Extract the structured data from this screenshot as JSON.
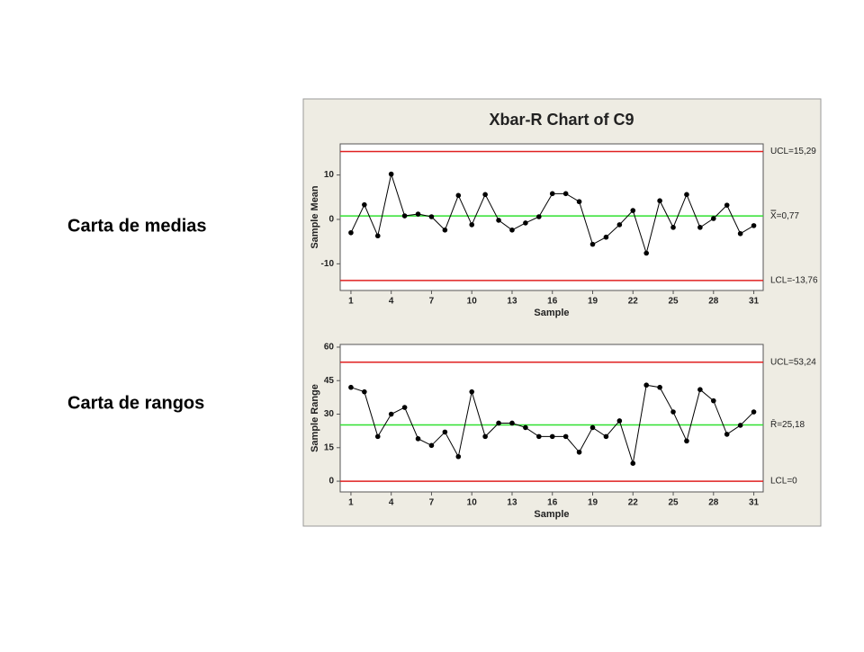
{
  "slide_labels": [
    "Carta de medias",
    "Carta de rangos"
  ],
  "chart_data": [
    {
      "type": "line",
      "title": "Xbar-R Chart of C9",
      "x_label": "Sample",
      "y_label": "Sample Mean",
      "x": [
        1,
        2,
        3,
        4,
        5,
        6,
        7,
        8,
        9,
        10,
        11,
        12,
        13,
        14,
        15,
        16,
        17,
        18,
        19,
        20,
        21,
        22,
        23,
        24,
        25,
        26,
        27,
        28,
        29,
        30,
        31
      ],
      "values": [
        -3,
        3.3,
        -3.7,
        10.2,
        0.8,
        1.2,
        0.6,
        -2.4,
        5.4,
        -1.2,
        5.6,
        -0.2,
        -2.4,
        -0.8,
        0.6,
        5.8,
        5.8,
        4,
        -5.6,
        -4,
        -1.2,
        2,
        -7.6,
        4.2,
        -1.8,
        5.6,
        -1.8,
        0.2,
        3.2,
        -3.2,
        -1.4
      ],
      "color": "#000000",
      "xlim": [
        0.2,
        31.7
      ],
      "xticks": [
        1,
        4,
        7,
        10,
        13,
        16,
        19,
        22,
        25,
        28,
        31
      ],
      "ylim": [
        -16,
        17
      ],
      "yticks": [
        -10,
        0,
        10
      ],
      "control_lines": [
        {
          "value": 15.29,
          "label": "UCL=15,29",
          "color": "#e02020"
        },
        {
          "value": 0.77,
          "label": "X̿=0,77",
          "color": "#30e030"
        },
        {
          "value": -13.76,
          "label": "LCL=-13,76",
          "color": "#e02020"
        }
      ]
    },
    {
      "type": "line",
      "x_label": "Sample",
      "y_label": "Sample Range",
      "x": [
        1,
        2,
        3,
        4,
        5,
        6,
        7,
        8,
        9,
        10,
        11,
        12,
        13,
        14,
        15,
        16,
        17,
        18,
        19,
        20,
        21,
        22,
        23,
        24,
        25,
        26,
        27,
        28,
        29,
        30,
        31
      ],
      "values": [
        42,
        40,
        20,
        30,
        33,
        19,
        16,
        22,
        11,
        40,
        20,
        26,
        26,
        24,
        20,
        20,
        20,
        13,
        24,
        20,
        27,
        8,
        43,
        42,
        31,
        18,
        41,
        36,
        21,
        25,
        31
      ],
      "color": "#000000",
      "xlim": [
        0.2,
        31.7
      ],
      "xticks": [
        1,
        4,
        7,
        10,
        13,
        16,
        19,
        22,
        25,
        28,
        31
      ],
      "ylim": [
        -4.8,
        61.2
      ],
      "yticks": [
        0,
        15,
        30,
        45,
        60
      ],
      "control_lines": [
        {
          "value": 53.24,
          "label": "UCL=53,24",
          "color": "#e02020"
        },
        {
          "value": 25.18,
          "label": "R̄=25,18",
          "color": "#30e030"
        },
        {
          "value": 0,
          "label": "LCL=0",
          "color": "#e02020"
        }
      ]
    }
  ]
}
